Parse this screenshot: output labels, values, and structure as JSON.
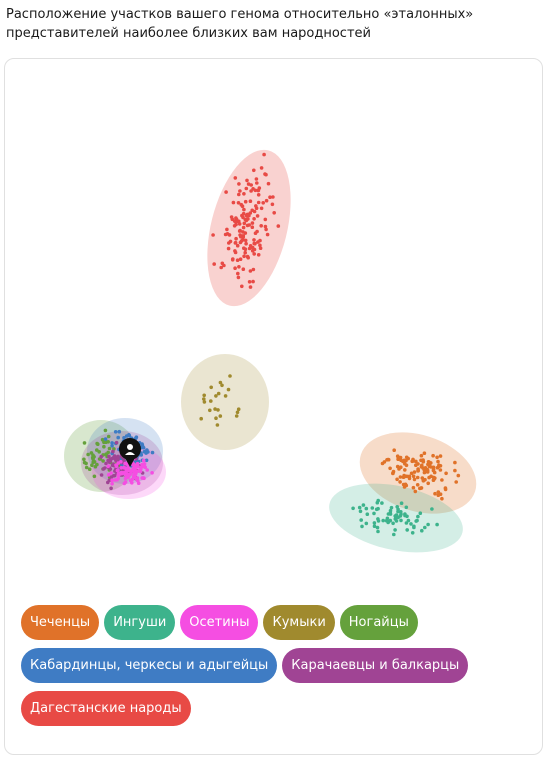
{
  "page": {
    "title": "Расположение участков вашего генома относительно «эталонных» представителей наиболее близких вам народностей"
  },
  "legend": {
    "rows": [
      [
        {
          "label": "Чеченцы",
          "color": "#e07229"
        },
        {
          "label": "Ингуши",
          "color": "#3db38c"
        },
        {
          "label": "Осетины",
          "color": "#f54ee2"
        },
        {
          "label": "Кумыки",
          "color": "#a08a2e"
        },
        {
          "label": "Ногайцы",
          "color": "#65a13c"
        }
      ],
      [
        {
          "label": "Кабардинцы, черкесы и адыгейцы",
          "color": "#3f7cc4"
        },
        {
          "label": "Карачаевцы и балкарцы",
          "color": "#a04494"
        }
      ],
      [
        {
          "label": "Дагестанские народы",
          "color": "#e84a45"
        }
      ]
    ]
  },
  "marker": {
    "icon": "user-location-icon",
    "color": "#111111"
  }
}
